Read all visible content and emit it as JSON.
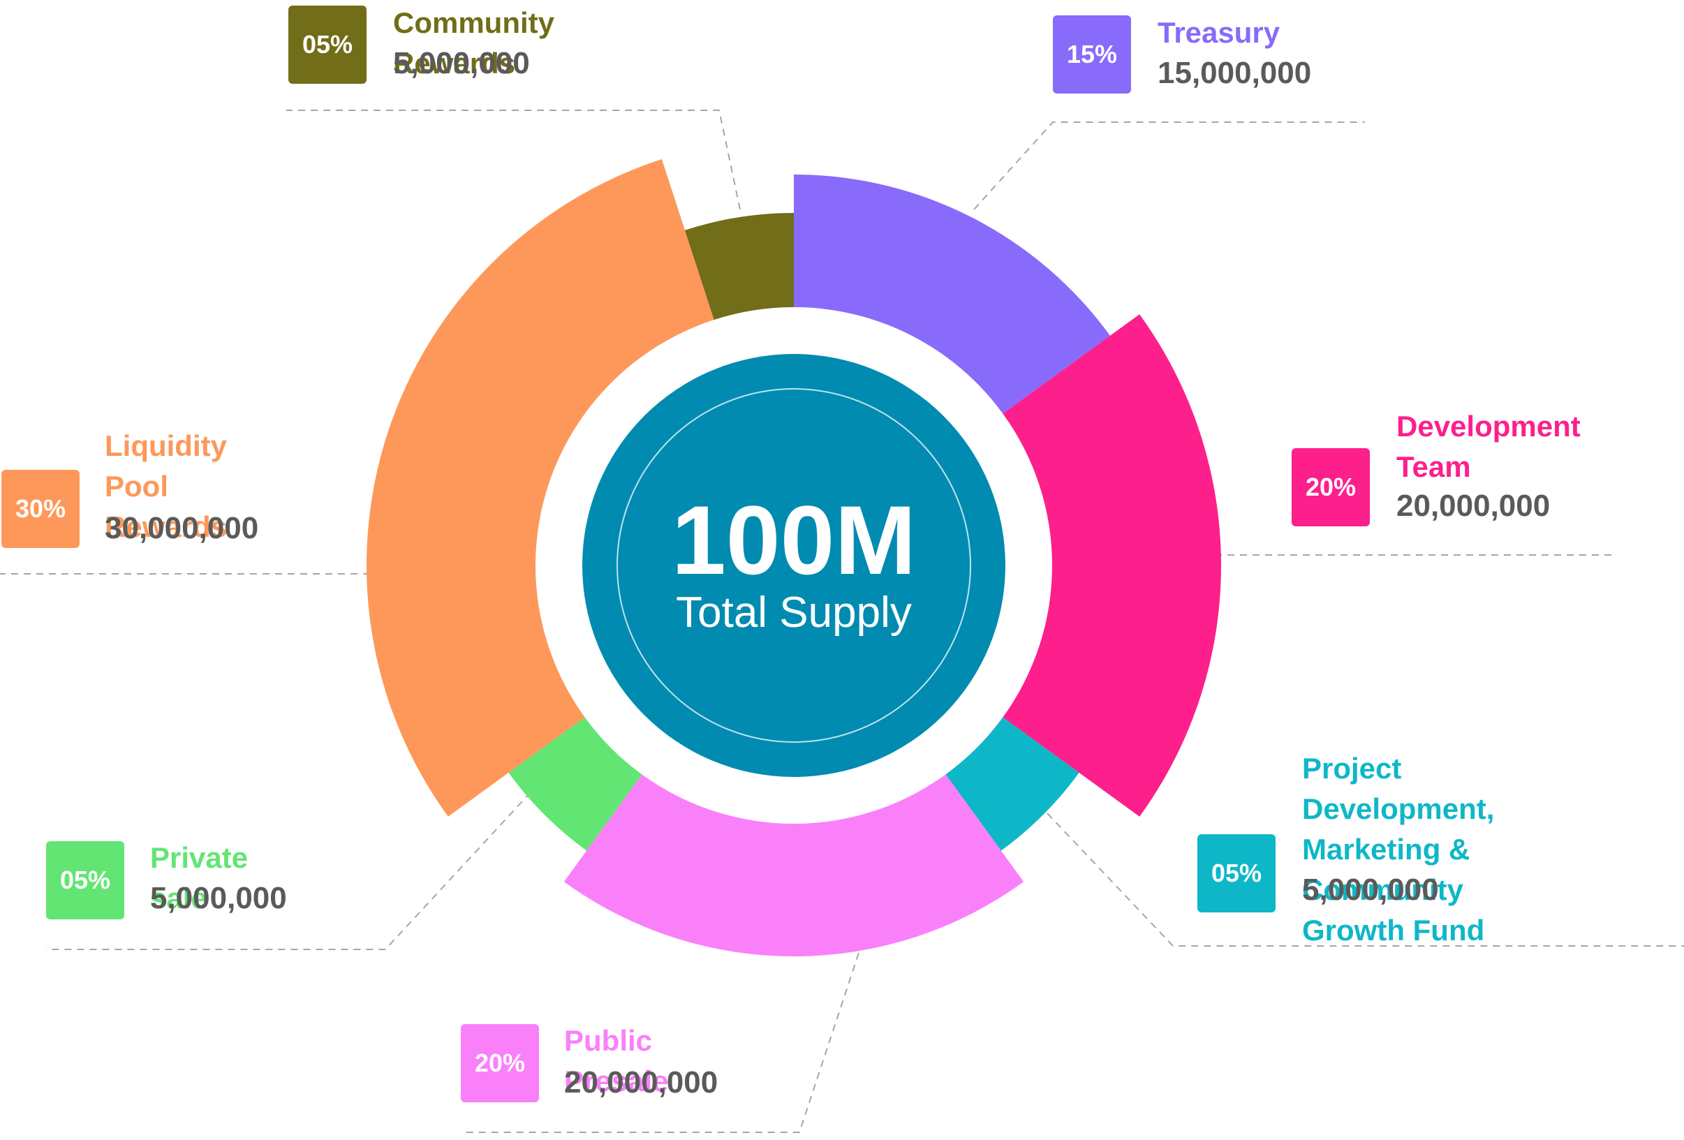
{
  "chart_data": {
    "type": "pie",
    "center": {
      "value": "100M",
      "label": "Total Supply"
    },
    "slices": [
      {
        "name": "Treasury",
        "percent_label": "15%",
        "value": 15000000,
        "value_label": "15,000,000",
        "color": "#886bfb"
      },
      {
        "name": "Development\nTeam",
        "percent_label": "20%",
        "value": 20000000,
        "value_label": "20,000,000",
        "color": "#fd1f8c"
      },
      {
        "name": "Project Development,\nMarketing & Community\nGrowth Fund",
        "percent_label": "05%",
        "value": 5000000,
        "value_label": "5,000,000",
        "color": "#0eb7c7"
      },
      {
        "name": "Public Presale",
        "percent_label": "20%",
        "value": 20000000,
        "value_label": "20,000,000",
        "color": "#fa80fa"
      },
      {
        "name": "Private sale",
        "percent_label": "05%",
        "value": 5000000,
        "value_label": "5,000,000",
        "color": "#63e574"
      },
      {
        "name": "Liquidity Pool\nRewards",
        "percent_label": "30%",
        "value": 30000000,
        "value_label": "30,000,000",
        "color": "#fe985a"
      },
      {
        "name": "Community Rewards",
        "percent_label": "05%",
        "value": 5000000,
        "value_label": "5,000,000",
        "color": "#716d18"
      }
    ],
    "center_color": "#028bb1"
  }
}
